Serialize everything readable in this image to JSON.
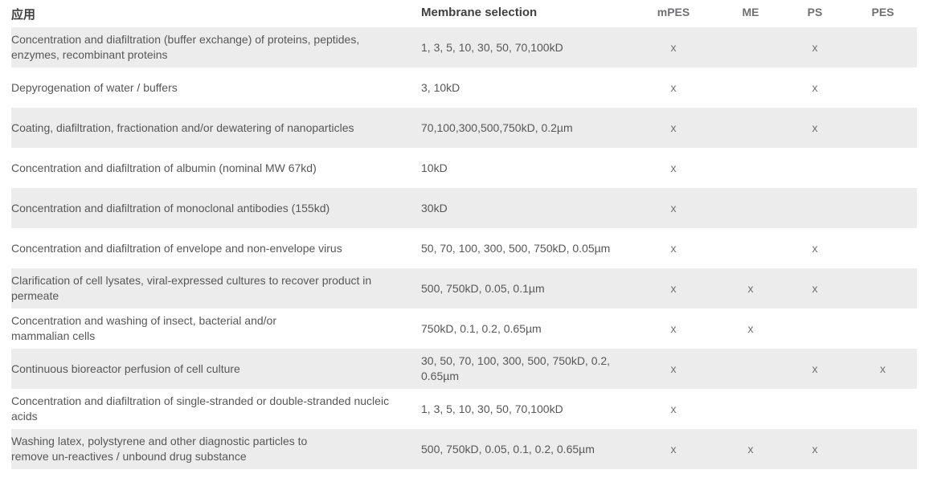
{
  "table": {
    "check_mark": "x",
    "columns": [
      {
        "key": "app",
        "label": "应用"
      },
      {
        "key": "membrane",
        "label": "Membrane selection"
      },
      {
        "key": "mpes",
        "label": "mPES"
      },
      {
        "key": "me",
        "label": "ME"
      },
      {
        "key": "ps",
        "label": "PS"
      },
      {
        "key": "pes",
        "label": "PES"
      }
    ],
    "rows": [
      {
        "app": "Concentration and diafiltration (buffer exchange) of proteins, peptides,\nenzymes, recombinant proteins",
        "membrane": "1, 3, 5, 10, 30, 50, 70,100kD",
        "mpes": true,
        "me": false,
        "ps": true,
        "pes": false
      },
      {
        "app": "Depyrogenation of water / buffers",
        "membrane": "3, 10kD",
        "mpes": true,
        "me": false,
        "ps": true,
        "pes": false
      },
      {
        "app": "Coating, diafiltration, fractionation and/or dewatering of nanoparticles",
        "membrane": "70,100,300,500,750kD, 0.2µm",
        "mpes": true,
        "me": false,
        "ps": true,
        "pes": false
      },
      {
        "app": "Concentration and diafiltration of albumin (nominal MW 67kd)",
        "membrane": "10kD",
        "mpes": true,
        "me": false,
        "ps": false,
        "pes": false
      },
      {
        "app": "Concentration and diafiltration of monoclonal antibodies (155kd)",
        "membrane": "30kD",
        "mpes": true,
        "me": false,
        "ps": false,
        "pes": false
      },
      {
        "app": "Concentration and diafiltration of envelope and non-envelope virus",
        "membrane": "50, 70, 100, 300, 500, 750kD, 0.05µm",
        "mpes": true,
        "me": false,
        "ps": true,
        "pes": false
      },
      {
        "app": "Clarification of cell lysates, viral-expressed cultures to recover product in\npermeate",
        "membrane": "500, 750kD, 0.05, 0.1µm",
        "mpes": true,
        "me": true,
        "ps": true,
        "pes": false
      },
      {
        "app": "Concentration and washing of insect, bacterial and/or\nmammalian cells",
        "membrane": "750kD, 0.1, 0.2, 0.65µm",
        "mpes": true,
        "me": true,
        "ps": false,
        "pes": false
      },
      {
        "app": "Continuous bioreactor perfusion of cell culture",
        "membrane": "30, 50, 70, 100, 300, 500, 750kD, 0.2,\n0.65µm",
        "mpes": true,
        "me": false,
        "ps": true,
        "pes": true
      },
      {
        "app": "Concentration and diafiltration of single-stranded or double-stranded nucleic\nacids",
        "membrane": "1, 3, 5, 10, 30, 50, 70,100kD",
        "mpes": true,
        "me": false,
        "ps": false,
        "pes": false
      },
      {
        "app": "Washing latex, polystyrene and other diagnostic particles to\nremove un-reactives / unbound drug substance",
        "membrane": "500, 750kD, 0.05, 0.1, 0.2, 0.65µm",
        "mpes": true,
        "me": true,
        "ps": true,
        "pes": false
      }
    ]
  },
  "colors": {
    "stripe": "#ececec",
    "text": "#565759",
    "header_text": "#404042",
    "mark": "#6f7073"
  }
}
